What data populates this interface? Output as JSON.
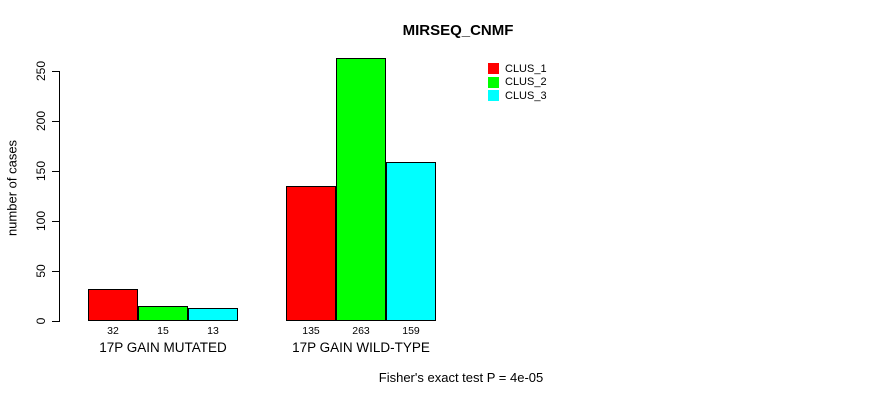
{
  "title": "MIRSEQ_CNMF",
  "footer": "Fisher's exact test P = 4e-05",
  "chart_data": {
    "type": "bar",
    "title": "MIRSEQ_CNMF",
    "categories": [
      "17P GAIN MUTATED",
      "17P GAIN WILD-TYPE"
    ],
    "series": [
      {
        "name": "CLUS_1",
        "color": "#ff0000",
        "values": [
          32,
          135
        ]
      },
      {
        "name": "CLUS_2",
        "color": "#00ff00",
        "values": [
          15,
          263
        ]
      },
      {
        "name": "CLUS_3",
        "color": "#00ffff",
        "values": [
          13,
          159
        ]
      }
    ],
    "xlabel": "",
    "ylabel": "number of cases",
    "yticks": [
      0,
      50,
      100,
      150,
      200,
      250
    ],
    "ylim": [
      0,
      263
    ],
    "grid": false,
    "bar_value_labels": true,
    "legend_position": "top-right",
    "annotation": "Fisher's exact test P = 4e-05",
    "axis_color": "#000000",
    "bar_border_color": "#000000"
  }
}
